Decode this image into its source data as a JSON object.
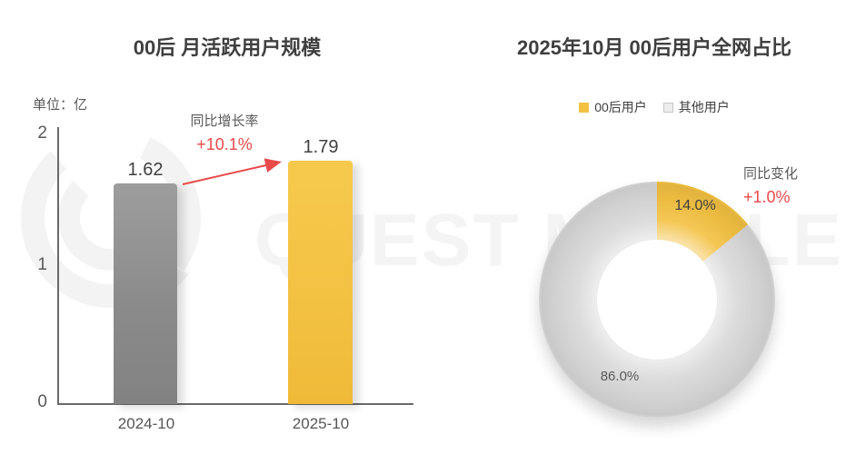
{
  "watermark": {
    "brand_text": "QUEST MOBILE"
  },
  "left_chart": {
    "title": "00后 月活跃用户规模",
    "unit_label": "单位：亿",
    "y_ticks": [
      "2",
      "1",
      "0"
    ],
    "growth_label": "同比增长率",
    "growth_value": "+10.1%",
    "bars": [
      {
        "category": "2024-10",
        "value": "1.62"
      },
      {
        "category": "2025-10",
        "value": "1.79"
      }
    ]
  },
  "right_chart": {
    "title": "2025年10月 00后用户全网占比",
    "legend": [
      {
        "label": "00后用户"
      },
      {
        "label": "其他用户"
      }
    ],
    "change_label": "同比变化",
    "change_value": "+1.0%",
    "slices": [
      {
        "label": "14.0%"
      },
      {
        "label": "86.0%"
      }
    ]
  },
  "colors": {
    "accent_yellow": "#f3c142",
    "bar_gray": "#8b8b8b",
    "donut_gray": "#d8d8d8",
    "negative_red": "#e94a4a",
    "text_dark": "#3f3f3f",
    "text_gray": "#595959",
    "watermark_gray": "#f3f3f3"
  },
  "chart_data": [
    {
      "type": "bar",
      "title": "00后 月活跃用户规模",
      "ylabel": "单位：亿",
      "categories": [
        "2024-10",
        "2025-10"
      ],
      "values": [
        1.62,
        1.79
      ],
      "ylim": [
        0,
        2
      ],
      "y_ticks": [
        0,
        1,
        2
      ],
      "bar_colors": [
        "#8b8b8b",
        "#f3c142"
      ],
      "annotation": {
        "label": "同比增长率",
        "value": "+10.1%"
      },
      "grid": false
    },
    {
      "type": "pie",
      "subtype": "donut",
      "title": "2025年10月 00后用户全网占比",
      "labels": [
        "00后用户",
        "其他用户"
      ],
      "values": [
        14.0,
        86.0
      ],
      "unit": "%",
      "slice_colors": [
        "#f3c142",
        "#d8d8d8"
      ],
      "start_angle_deg": 0,
      "direction": "clockwise",
      "legend_position": "top",
      "annotation": {
        "label": "同比变化",
        "value": "+1.0%"
      }
    }
  ]
}
